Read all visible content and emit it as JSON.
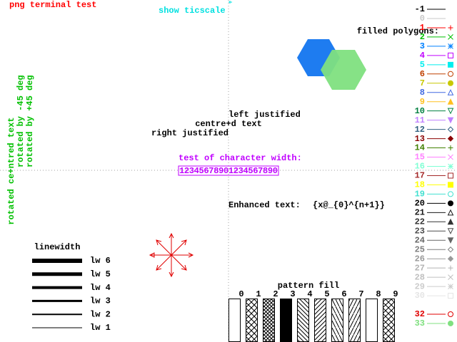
{
  "header": {
    "title": "png  terminal test",
    "ticscale": "show ticscale"
  },
  "polygons": {
    "title": "filled polygons:",
    "colors": [
      "#1e7cf0",
      "#80e080"
    ]
  },
  "justify": {
    "left": "left justified",
    "centre": "centre+d text",
    "right": "right justified"
  },
  "char_width": {
    "title": "test of character width:",
    "digits": "12345678901234567890"
  },
  "rotated": {
    "centred": "rotated ce+ntred text",
    "minus45": "rotated by -45 deg",
    "plus45": "rotated by +45 deg"
  },
  "enhanced": {
    "label": "Enhanced text:",
    "text": "{x@_{0}^{n+1}}"
  },
  "linewidth": {
    "title": "linewidth",
    "items": [
      "lw 6",
      "lw 5",
      "lw 4",
      "lw 3",
      "lw 2",
      "lw 1"
    ]
  },
  "pattern_fill": {
    "title": "pattern fill",
    "labels": [
      0,
      1,
      2,
      3,
      4,
      5,
      6,
      7,
      8,
      9
    ]
  },
  "legend": [
    {
      "label": -1,
      "color": "#000000"
    },
    {
      "label": 0,
      "color": "#c8c8c8"
    },
    {
      "label": 1,
      "color": "#ff0000"
    },
    {
      "label": 2,
      "color": "#00c000"
    },
    {
      "label": 3,
      "color": "#0080ff"
    },
    {
      "label": 4,
      "color": "#c000ff"
    },
    {
      "label": 5,
      "color": "#00eeee"
    },
    {
      "label": 6,
      "color": "#c04000"
    },
    {
      "label": 7,
      "color": "#c8c800"
    },
    {
      "label": 8,
      "color": "#4169e1"
    },
    {
      "label": 9,
      "color": "#ffc020"
    },
    {
      "label": 10,
      "color": "#008040"
    },
    {
      "label": 11,
      "color": "#c080ff"
    },
    {
      "label": 12,
      "color": "#306080"
    },
    {
      "label": 13,
      "color": "#8b0000"
    },
    {
      "label": 14,
      "color": "#408000"
    },
    {
      "label": 15,
      "color": "#ff80ff"
    },
    {
      "label": 16,
      "color": "#7fffd4"
    },
    {
      "label": 17,
      "color": "#a52a2a"
    },
    {
      "label": 18,
      "color": "#ffff00"
    },
    {
      "label": 19,
      "color": "#40e0d0"
    },
    {
      "label": 20,
      "color": "#000000"
    },
    {
      "label": 21,
      "color": "#1a1a1a"
    },
    {
      "label": 22,
      "color": "#333333"
    },
    {
      "label": 23,
      "color": "#4d4d4d"
    },
    {
      "label": 24,
      "color": "#666666"
    },
    {
      "label": 25,
      "color": "#7f7f7f"
    },
    {
      "label": 26,
      "color": "#999999"
    },
    {
      "label": 27,
      "color": "#b3b3b3"
    },
    {
      "label": 28,
      "color": "#c0c0c0"
    },
    {
      "label": 29,
      "color": "#cccccc"
    },
    {
      "label": 30,
      "color": "#e5e5e5"
    },
    {
      "label": 32,
      "color": "#e00000"
    },
    {
      "label": 33,
      "color": "#80e080"
    }
  ]
}
